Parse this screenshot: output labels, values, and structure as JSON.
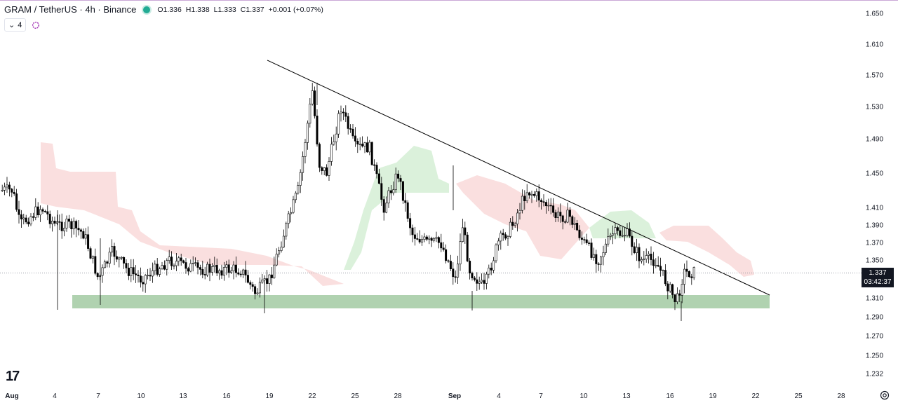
{
  "header": {
    "title": "GRAM / TetherUS · 4h · Binance",
    "open": "O1.336",
    "high": "H1.338",
    "low": "L1.333",
    "close": "C1.337",
    "change": "+0.001 (+0.07%)"
  },
  "indicator": {
    "chevron": "⌄",
    "count": "4",
    "icon": "ichimoku-loop-icon"
  },
  "price_tag": {
    "price": "1.337",
    "countdown": "03:42:37"
  },
  "logo_text": "17",
  "colors": {
    "up": "#ffffff",
    "down": "#000000",
    "cloud_red": "#f8d4d4",
    "cloud_green": "#cfeccf",
    "support_zone": "#8fbf8f",
    "trendline": "#000000"
  },
  "chart_data": {
    "type": "candlestick",
    "title": "GRAM / TetherUS · 4h · Binance",
    "y_ticks": [
      "1.650",
      "1.610",
      "1.570",
      "1.530",
      "1.490",
      "1.450",
      "1.410",
      "1.390",
      "1.370",
      "1.350",
      "1.310",
      "1.290",
      "1.270",
      "1.250",
      "1.232"
    ],
    "x_ticks": [
      "Aug",
      "4",
      "7",
      "10",
      "13",
      "16",
      "19",
      "22",
      "25",
      "28",
      "Sep",
      "4",
      "7",
      "10",
      "13",
      "16",
      "19",
      "22",
      "25",
      "28"
    ],
    "current_price": 1.337,
    "annotations": [
      {
        "type": "trendline",
        "from": {
          "date": "Aug 19",
          "price": 1.585
        },
        "to": {
          "date": "Sep 22",
          "price": 1.313
        }
      },
      {
        "type": "support_zone",
        "from_date": "Aug 5",
        "to_date": "Sep 22",
        "low": 1.302,
        "high": 1.314
      }
    ],
    "close_path": [
      {
        "date": "Aug 1",
        "price": 1.43
      },
      {
        "date": "Aug 1.5",
        "price": 1.39
      },
      {
        "date": "Aug 3",
        "price": 1.41
      },
      {
        "date": "Aug 4",
        "price": 1.39
      },
      {
        "date": "Aug 5",
        "price": 1.39
      },
      {
        "date": "Aug 6",
        "price": 1.38
      },
      {
        "date": "Aug 7",
        "price": 1.33
      },
      {
        "date": "Aug 8",
        "price": 1.36
      },
      {
        "date": "Aug 9",
        "price": 1.34
      },
      {
        "date": "Aug 10",
        "price": 1.33
      },
      {
        "date": "Aug 12",
        "price": 1.35
      },
      {
        "date": "Aug 14",
        "price": 1.34
      },
      {
        "date": "Aug 16",
        "price": 1.34
      },
      {
        "date": "Aug 17",
        "price": 1.34
      },
      {
        "date": "Aug 18",
        "price": 1.315
      },
      {
        "date": "Aug 19",
        "price": 1.33
      },
      {
        "date": "Aug 20",
        "price": 1.38
      },
      {
        "date": "Aug 21",
        "price": 1.43
      },
      {
        "date": "Aug 22",
        "price": 1.55
      },
      {
        "date": "Aug 22.5",
        "price": 1.46
      },
      {
        "date": "Aug 23",
        "price": 1.45
      },
      {
        "date": "Aug 24",
        "price": 1.53
      },
      {
        "date": "Aug 25",
        "price": 1.48
      },
      {
        "date": "Aug 26",
        "price": 1.48
      },
      {
        "date": "Aug 27",
        "price": 1.41
      },
      {
        "date": "Aug 28",
        "price": 1.45
      },
      {
        "date": "Aug 29",
        "price": 1.38
      },
      {
        "date": "Aug 30",
        "price": 1.37
      },
      {
        "date": "Aug 31",
        "price": 1.37
      },
      {
        "date": "Sep 1",
        "price": 1.33
      },
      {
        "date": "Sep 1.5",
        "price": 1.39
      },
      {
        "date": "Sep 2",
        "price": 1.34
      },
      {
        "date": "Sep 3",
        "price": 1.32
      },
      {
        "date": "Sep 4",
        "price": 1.37
      },
      {
        "date": "Sep 5",
        "price": 1.39
      },
      {
        "date": "Sep 6",
        "price": 1.43
      },
      {
        "date": "Sep 7",
        "price": 1.42
      },
      {
        "date": "Sep 8",
        "price": 1.4
      },
      {
        "date": "Sep 9",
        "price": 1.4
      },
      {
        "date": "Sep 10",
        "price": 1.37
      },
      {
        "date": "Sep 11",
        "price": 1.35
      },
      {
        "date": "Sep 12",
        "price": 1.38
      },
      {
        "date": "Sep 13",
        "price": 1.38
      },
      {
        "date": "Sep 14",
        "price": 1.35
      },
      {
        "date": "Sep 15",
        "price": 1.35
      },
      {
        "date": "Sep 16",
        "price": 1.32
      },
      {
        "date": "Sep 16.5",
        "price": 1.305
      },
      {
        "date": "Sep 17",
        "price": 1.337
      }
    ]
  }
}
